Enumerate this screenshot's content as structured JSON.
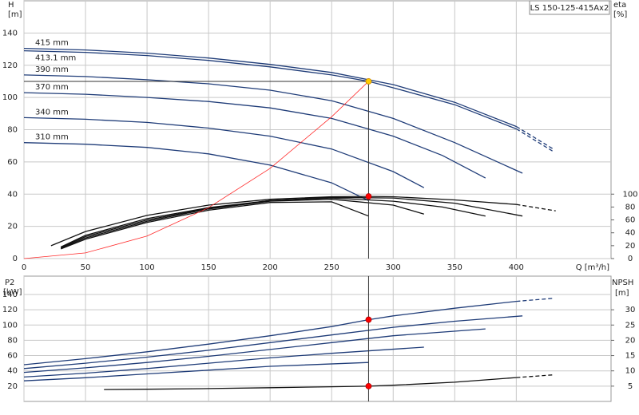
{
  "chart_data": [
    {
      "type": "line",
      "title": "LS 150-125-415Ax2",
      "y_label": "H",
      "y_unit": "[m]",
      "y2_label": "eta",
      "y2_unit": "[%]",
      "x_label": "Q [m³/h]",
      "xlim": [
        0,
        477
      ],
      "xticks": [
        0,
        50,
        100,
        150,
        200,
        250,
        300,
        350,
        400
      ],
      "ylim": [
        0,
        160
      ],
      "yticks": [
        0,
        20,
        40,
        60,
        80,
        100,
        120,
        140
      ],
      "y2lim": [
        0,
        400
      ],
      "y2ticks": [
        0,
        20,
        40,
        60,
        80,
        100
      ],
      "grid": true,
      "series": [
        {
          "name": "415 mm",
          "color": "#1f3c78",
          "x": [
            0,
            50,
            100,
            150,
            200,
            250,
            300,
            350,
            400
          ],
          "values": [
            130.5,
            129.5,
            127.5,
            124.5,
            120.5,
            115.5,
            108,
            97,
            82
          ]
        },
        {
          "name": "413.1 mm",
          "color": "#1f3c78",
          "x": [
            0,
            50,
            100,
            150,
            200,
            250,
            280,
            300,
            350,
            400
          ],
          "values": [
            129,
            128,
            126,
            123,
            119,
            114,
            110,
            106,
            95.5,
            80.5
          ]
        },
        {
          "color": "#1f3c78",
          "style": "dashed",
          "x": [
            400,
            430
          ],
          "values": [
            82,
            68
          ]
        },
        {
          "color": "#1f3c78",
          "style": "dashed",
          "x": [
            400,
            430
          ],
          "values": [
            80.5,
            66.5
          ]
        },
        {
          "name": "390 mm",
          "color": "#1f3c78",
          "x": [
            0,
            50,
            100,
            150,
            200,
            250,
            300,
            350,
            405
          ],
          "values": [
            114,
            113,
            111,
            108.5,
            104.5,
            98,
            87,
            72,
            53
          ]
        },
        {
          "name": "370 mm",
          "color": "#1f3c78",
          "x": [
            0,
            50,
            100,
            150,
            200,
            250,
            300,
            340,
            375
          ],
          "values": [
            103,
            102,
            100,
            97.5,
            93.5,
            87,
            76,
            64,
            50
          ]
        },
        {
          "name": "340 mm",
          "color": "#1f3c78",
          "x": [
            0,
            50,
            100,
            150,
            200,
            250,
            300,
            325
          ],
          "values": [
            87.5,
            86.5,
            84.5,
            81,
            76,
            68,
            54,
            44
          ]
        },
        {
          "name": "310 mm",
          "color": "#1f3c78",
          "x": [
            0,
            50,
            100,
            150,
            200,
            250,
            280
          ],
          "values": [
            72,
            71,
            69,
            65,
            58,
            47,
            36
          ]
        },
        {
          "axis": "y2",
          "color": "#111111",
          "x": [
            22,
            50,
            100,
            150,
            200,
            250,
            280,
            300,
            350,
            400
          ],
          "values": [
            20,
            42,
            67,
            83,
            92,
            96,
            96.5,
            96,
            91,
            84
          ]
        },
        {
          "axis": "y2",
          "color": "#111111",
          "style": "dashed",
          "x": [
            400,
            432
          ],
          "values": [
            84,
            74
          ]
        },
        {
          "axis": "y2",
          "color": "#111111",
          "x": [
            30,
            50,
            100,
            150,
            200,
            250,
            300,
            350,
            405
          ],
          "values": [
            18,
            36,
            62,
            79,
            90,
            95,
            94,
            86,
            66
          ]
        },
        {
          "axis": "y2",
          "color": "#111111",
          "x": [
            30,
            50,
            100,
            150,
            200,
            250,
            300,
            340,
            375
          ],
          "values": [
            17,
            34,
            60,
            78,
            90,
            94,
            89,
            80,
            66
          ]
        },
        {
          "axis": "y2",
          "color": "#111111",
          "x": [
            30,
            50,
            100,
            150,
            200,
            250,
            300,
            325
          ],
          "values": [
            16,
            32,
            58,
            77,
            89,
            92,
            83,
            69
          ]
        },
        {
          "axis": "y2",
          "color": "#111111",
          "x": [
            30,
            50,
            100,
            150,
            200,
            250,
            280
          ],
          "values": [
            15,
            30,
            56,
            75,
            87,
            88,
            66
          ]
        },
        {
          "color": "#ff2a2a",
          "style": "thin",
          "x": [
            0,
            50,
            100,
            150,
            200,
            250,
            280
          ],
          "values": [
            0,
            3.5,
            14,
            31.6,
            56,
            88,
            110
          ]
        },
        {
          "color": "#ffcc00",
          "style": "marker",
          "guides": "cross",
          "x": [
            280
          ],
          "values": [
            110
          ]
        },
        {
          "axis": "y2",
          "color": "#ff0000",
          "style": "marker",
          "x": [
            280
          ],
          "values": [
            96.5
          ]
        }
      ]
    },
    {
      "type": "line",
      "y_label": "P2",
      "y_unit": "[kW]",
      "y2_label": "NPSH",
      "y2_unit": "[m]",
      "xlim": [
        0,
        477
      ],
      "ylim": [
        0,
        164
      ],
      "yticks": [
        20,
        40,
        60,
        80,
        100,
        120,
        140
      ],
      "y2lim": [
        0,
        41
      ],
      "y2ticks": [
        5,
        10,
        15,
        20,
        25,
        30
      ],
      "grid": true,
      "series": [
        {
          "color": "#1f3c78",
          "x": [
            0,
            50,
            100,
            150,
            200,
            250,
            280,
            300,
            350,
            400
          ],
          "values": [
            48,
            56,
            65,
            75,
            86,
            98,
            107,
            112,
            122,
            131
          ]
        },
        {
          "color": "#1f3c78",
          "style": "dashed",
          "x": [
            400,
            430
          ],
          "values": [
            131,
            135
          ]
        },
        {
          "color": "#1f3c78",
          "x": [
            0,
            50,
            100,
            150,
            200,
            250,
            300,
            350,
            405
          ],
          "values": [
            43,
            50,
            58,
            67,
            77,
            87,
            97,
            105,
            112
          ]
        },
        {
          "color": "#1f3c78",
          "x": [
            0,
            50,
            100,
            150,
            200,
            250,
            300,
            375
          ],
          "values": [
            38,
            44,
            51,
            59,
            68,
            77,
            86,
            95
          ]
        },
        {
          "color": "#1f3c78",
          "x": [
            0,
            50,
            100,
            150,
            200,
            250,
            325
          ],
          "values": [
            32,
            37,
            43,
            50,
            57,
            63,
            71
          ]
        },
        {
          "color": "#1f3c78",
          "x": [
            0,
            50,
            100,
            150,
            200,
            280
          ],
          "values": [
            27,
            31,
            36,
            41,
            46,
            51
          ]
        },
        {
          "axis": "y2",
          "color": "#111111",
          "x": [
            65,
            100,
            150,
            200,
            250,
            280,
            300,
            350,
            400
          ],
          "values": [
            3.9,
            4.0,
            4.2,
            4.5,
            4.8,
            5,
            5.3,
            6.3,
            7.8
          ]
        },
        {
          "axis": "y2",
          "color": "#111111",
          "style": "dashed",
          "x": [
            400,
            430
          ],
          "values": [
            7.8,
            8.7
          ]
        },
        {
          "color": "#ff0000",
          "style": "marker",
          "guides": "full",
          "x": [
            280
          ],
          "values": [
            107
          ]
        },
        {
          "axis": "y2",
          "color": "#ff0000",
          "style": "marker",
          "x": [
            280
          ],
          "values": [
            5
          ]
        }
      ]
    }
  ]
}
